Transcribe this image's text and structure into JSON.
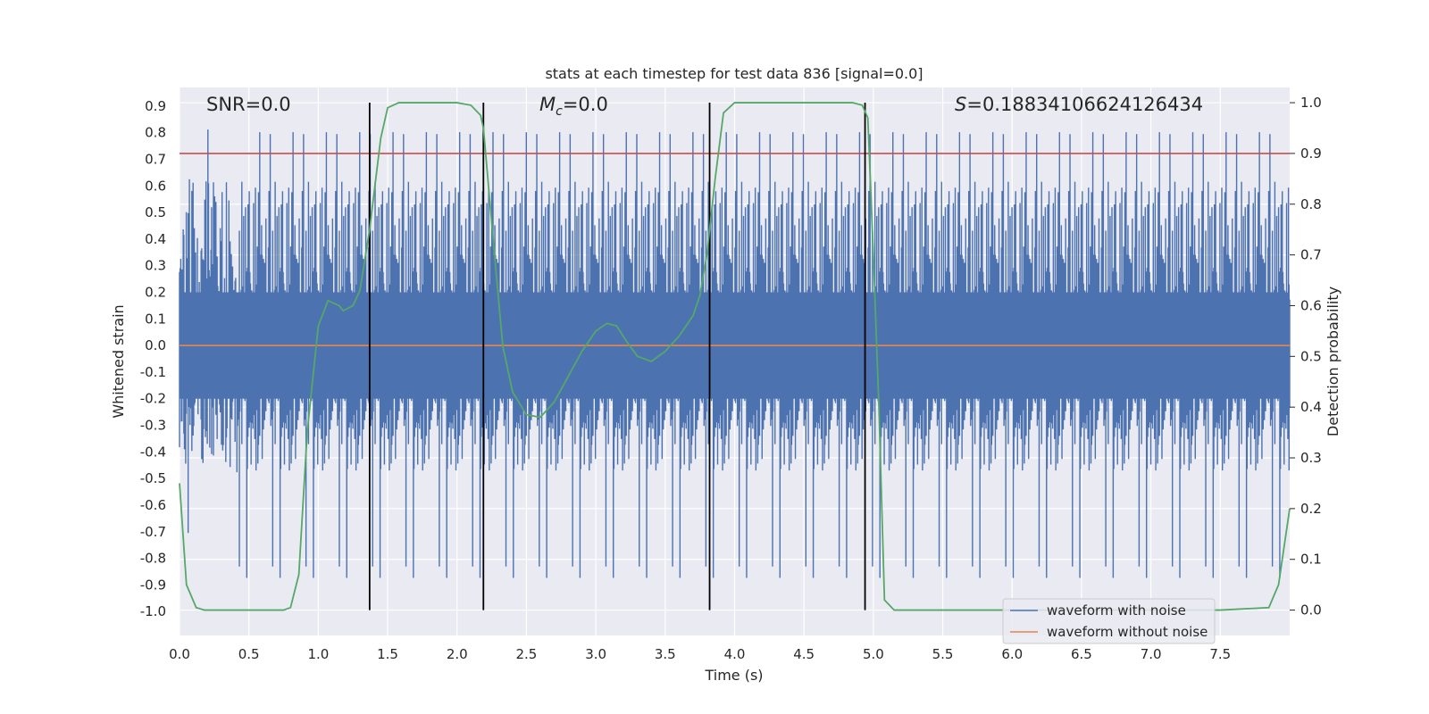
{
  "chart_data": {
    "type": "line",
    "title": "stats at each timestep for test data 836 [signal=0.0]",
    "xlabel": "Time (s)",
    "ylabel_left": "Whitened strain",
    "ylabel_right": "Detection probability",
    "xlim": [
      0.0,
      8.0
    ],
    "ylim_left": [
      -1.09,
      0.97
    ],
    "ylim_right": [
      -0.05,
      1.03
    ],
    "x_ticks": [
      "0.0",
      "0.5",
      "1.0",
      "1.5",
      "2.0",
      "2.5",
      "3.0",
      "3.5",
      "4.0",
      "4.5",
      "5.0",
      "5.5",
      "6.0",
      "6.5",
      "7.0",
      "7.5"
    ],
    "y_left_ticks": [
      "0.9",
      "0.8",
      "0.7",
      "0.6",
      "0.5",
      "0.4",
      "0.3",
      "0.2",
      "0.1",
      "0.0",
      "-0.1",
      "-0.2",
      "-0.3",
      "-0.4",
      "-0.5",
      "-0.6",
      "-0.7",
      "-0.8",
      "-0.9",
      "-1.0"
    ],
    "y_right_ticks": [
      "1.0",
      "0.9",
      "0.8",
      "0.7",
      "0.6",
      "0.5",
      "0.4",
      "0.3",
      "0.2",
      "0.1",
      "0.0"
    ],
    "grid": true,
    "annotations": {
      "snr": "SNR=0.0",
      "mc_symbol": "M",
      "mc_sub": "c",
      "mc_value": "=0.0",
      "s_symbol": "S",
      "s_value": "=0.18834106624126434"
    },
    "threshold_line": {
      "axis": "right",
      "y": 0.9,
      "color": "#c44e52"
    },
    "vertical_lines_x": [
      1.37,
      2.19,
      3.82,
      4.94
    ],
    "series": [
      {
        "name": "waveform with noise",
        "axis": "left",
        "color": "#4c72b0",
        "style": "noise",
        "typical_range": [
          -0.45,
          0.6
        ],
        "spike_max": [
          0.85,
          -0.95
        ],
        "samples": 1800
      },
      {
        "name": "waveform without noise",
        "axis": "left",
        "color": "#dd8452",
        "x": [
          0.0,
          8.0
        ],
        "y": [
          0.0,
          0.0
        ]
      },
      {
        "axis": "right",
        "color": "#55a868",
        "x": [
          0.0,
          0.05,
          0.12,
          0.18,
          0.25,
          0.5,
          0.75,
          0.8,
          0.86,
          0.92,
          1.0,
          1.07,
          1.15,
          1.18,
          1.25,
          1.3,
          1.37,
          1.45,
          1.5,
          1.58,
          1.7,
          2.0,
          2.1,
          2.17,
          2.19,
          2.27,
          2.33,
          2.4,
          2.5,
          2.6,
          2.7,
          2.8,
          2.9,
          3.0,
          3.08,
          3.15,
          3.22,
          3.3,
          3.4,
          3.5,
          3.6,
          3.7,
          3.75,
          3.8,
          3.86,
          3.92,
          4.0,
          4.5,
          4.85,
          4.92,
          4.96,
          5.0,
          5.04,
          5.08,
          5.15,
          5.5,
          6.5,
          7.5,
          7.85,
          7.92,
          8.0
        ],
        "y": [
          0.25,
          0.05,
          0.005,
          0.0,
          0.0,
          0.0,
          0.0,
          0.005,
          0.07,
          0.35,
          0.56,
          0.61,
          0.6,
          0.59,
          0.6,
          0.63,
          0.75,
          0.93,
          0.99,
          1.0,
          1.0,
          1.0,
          0.995,
          0.975,
          0.95,
          0.7,
          0.52,
          0.43,
          0.385,
          0.38,
          0.41,
          0.46,
          0.51,
          0.55,
          0.565,
          0.56,
          0.53,
          0.5,
          0.49,
          0.51,
          0.54,
          0.58,
          0.62,
          0.7,
          0.85,
          0.98,
          1.0,
          1.0,
          1.0,
          0.995,
          0.97,
          0.7,
          0.4,
          0.02,
          0.0,
          0.0,
          0.0,
          0.0,
          0.005,
          0.05,
          0.2
        ]
      }
    ],
    "legend": {
      "position": "lower right",
      "entries": [
        "waveform with noise",
        "waveform without noise"
      ]
    }
  }
}
